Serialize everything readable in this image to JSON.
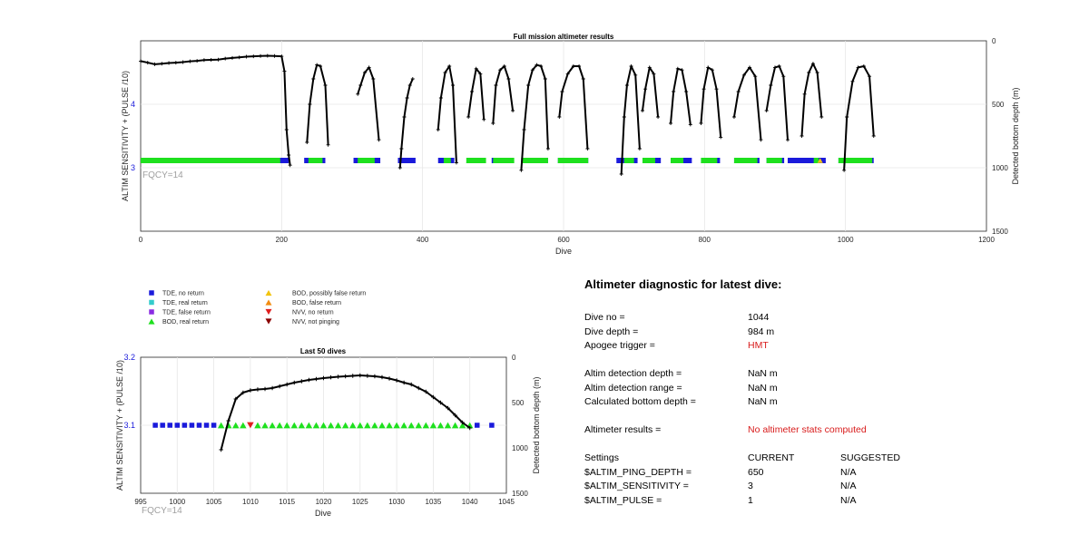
{
  "colors": {
    "tde_no_return": "#1a1adb",
    "tde_real_return": "#33cccc",
    "tde_false_return": "#8a2be2",
    "bod_real_return": "#1ee01e",
    "bod_possibly_false": "#f2c40f",
    "bod_false": "#f28c0f",
    "nvv_no_return": "#e01f1f",
    "nvv_not_pinging": "#8b0000",
    "depth_line": "#000000",
    "warning_text": "#d81b1b"
  },
  "legend": [
    {
      "label": "TDE, no return",
      "marker": "square",
      "color": "#1a1adb"
    },
    {
      "label": "TDE, real return",
      "marker": "square",
      "color": "#33cccc"
    },
    {
      "label": "TDE, false return",
      "marker": "square",
      "color": "#8a2be2"
    },
    {
      "label": "BOD, real return",
      "marker": "triangle-up",
      "color": "#1ee01e"
    },
    {
      "label": "BOD, possibly false return",
      "marker": "triangle-up",
      "color": "#f2c40f"
    },
    {
      "label": "BOD, false return",
      "marker": "triangle-up",
      "color": "#f28c0f"
    },
    {
      "label": "NVV, no return",
      "marker": "triangle-down",
      "color": "#e01f1f"
    },
    {
      "label": "NVV, not pinging",
      "marker": "triangle-down",
      "color": "#8b0000"
    }
  ],
  "diagnostic": {
    "title": "Altimeter diagnostic for latest dive:",
    "dive_no_label": "Dive no =",
    "dive_no": "1044",
    "dive_depth_label": "Dive depth =",
    "dive_depth": "984 m",
    "apogee_label": "Apogee trigger =",
    "apogee": "HMT",
    "detect_depth_label": "Altim detection depth =",
    "detect_depth": "NaN m",
    "detect_range_label": "Altim detection range =",
    "detect_range": "NaN m",
    "calc_depth_label": "Calculated bottom depth =",
    "calc_depth": "NaN m",
    "results_label": "Altimeter results =",
    "results": "No altimeter stats computed",
    "settings_label": "Settings",
    "current_label": "CURRENT",
    "suggested_label": "SUGGESTED",
    "settings": [
      {
        "name": "$ALTIM_PING_DEPTH =",
        "current": "650",
        "suggested": "N/A"
      },
      {
        "name": "$ALTIM_SENSITIVITY =",
        "current": "3",
        "suggested": "N/A"
      },
      {
        "name": "$ALTIM_PULSE =",
        "current": "1",
        "suggested": "N/A"
      }
    ]
  },
  "chart_data": [
    {
      "type": "scatter",
      "title": "Full mission altimeter results",
      "xlabel": "Dive",
      "ylabel": "ALTIM SENSITIVITY + (PULSE /10)",
      "y2label": "Detected bottom depth (m)",
      "annotation": "FQCY=14",
      "xlim": [
        0,
        1200
      ],
      "ylim": [
        2,
        5
      ],
      "y2lim": [
        1500,
        0
      ],
      "y2_reversed": true,
      "xticks": [
        0,
        200,
        400,
        600,
        800,
        1000,
        1200
      ],
      "yticks": [
        3,
        4
      ],
      "y2ticks": [
        0,
        500,
        1000,
        1500
      ],
      "grid": true,
      "tde_no_return_ranges": [
        [
          0,
          210
        ],
        [
          232,
          262
        ],
        [
          302,
          340
        ],
        [
          365,
          390
        ],
        [
          422,
          445
        ],
        [
          470,
          480
        ],
        [
          498,
          528
        ],
        [
          540,
          578
        ],
        [
          592,
          635
        ],
        [
          675,
          705
        ],
        [
          712,
          738
        ],
        [
          752,
          782
        ],
        [
          795,
          822
        ],
        [
          842,
          878
        ],
        [
          888,
          913
        ],
        [
          918,
          972
        ],
        [
          990,
          1040
        ]
      ],
      "bod_real_return_ranges": [
        [
          0,
          198
        ],
        [
          238,
          258
        ],
        [
          308,
          332
        ],
        [
          430,
          440
        ],
        [
          462,
          490
        ],
        [
          500,
          530
        ],
        [
          540,
          578
        ],
        [
          592,
          635
        ],
        [
          686,
          700
        ],
        [
          712,
          730
        ],
        [
          752,
          770
        ],
        [
          795,
          818
        ],
        [
          842,
          875
        ],
        [
          888,
          910
        ],
        [
          955,
          962
        ],
        [
          990,
          1038
        ]
      ],
      "bod_possibly_false_ranges": [
        [
          960,
          968
        ]
      ],
      "depth_segments": [
        {
          "x": [
            0,
            10,
            20,
            30,
            40,
            50,
            60,
            70,
            80,
            90,
            100,
            110,
            120,
            130,
            140,
            150,
            160,
            170,
            180,
            190,
            200,
            204,
            207,
            210,
            212
          ],
          "y": [
            160,
            172,
            185,
            180,
            175,
            172,
            168,
            162,
            158,
            152,
            150,
            148,
            140,
            135,
            130,
            125,
            122,
            120,
            118,
            120,
            122,
            240,
            700,
            900,
            980
          ]
        },
        {
          "x": [
            236,
            240,
            245,
            250,
            255,
            262,
            266
          ],
          "y": [
            800,
            500,
            300,
            190,
            200,
            350,
            820
          ]
        },
        {
          "x": [
            308,
            312,
            318,
            324,
            330,
            338
          ],
          "y": [
            420,
            350,
            250,
            210,
            300,
            780
          ]
        },
        {
          "x": [
            368,
            370,
            374,
            378,
            382,
            386
          ],
          "y": [
            1000,
            850,
            600,
            450,
            350,
            300
          ]
        },
        {
          "x": [
            422,
            426,
            432,
            438,
            443,
            448
          ],
          "y": [
            700,
            450,
            250,
            200,
            350,
            960
          ]
        },
        {
          "x": [
            465,
            470,
            476,
            482,
            487
          ],
          "y": [
            600,
            400,
            220,
            260,
            620
          ]
        },
        {
          "x": [
            500,
            504,
            510,
            516,
            522,
            528
          ],
          "y": [
            650,
            350,
            230,
            200,
            300,
            550
          ]
        },
        {
          "x": [
            540,
            544,
            550,
            556,
            562,
            568,
            574,
            578
          ],
          "y": [
            1020,
            700,
            350,
            230,
            190,
            200,
            300,
            850
          ]
        },
        {
          "x": [
            594,
            598,
            606,
            614,
            622,
            628,
            634
          ],
          "y": [
            600,
            400,
            260,
            200,
            200,
            300,
            850
          ]
        },
        {
          "x": [
            682,
            686,
            690,
            696,
            702,
            708
          ],
          "y": [
            1050,
            600,
            350,
            200,
            270,
            850
          ]
        },
        {
          "x": [
            712,
            716,
            722,
            728,
            734
          ],
          "y": [
            550,
            380,
            210,
            260,
            600
          ]
        },
        {
          "x": [
            752,
            756,
            762,
            768,
            774,
            780
          ],
          "y": [
            650,
            400,
            220,
            230,
            400,
            660
          ]
        },
        {
          "x": [
            795,
            799,
            805,
            811,
            817,
            823
          ],
          "y": [
            650,
            380,
            210,
            230,
            380,
            760
          ]
        },
        {
          "x": [
            842,
            848,
            856,
            864,
            872,
            880
          ],
          "y": [
            600,
            400,
            270,
            210,
            280,
            780
          ]
        },
        {
          "x": [
            888,
            894,
            900,
            906,
            912,
            918
          ],
          "y": [
            550,
            350,
            210,
            200,
            280,
            780
          ]
        },
        {
          "x": [
            938,
            942,
            948,
            954,
            960,
            966
          ],
          "y": [
            750,
            420,
            250,
            180,
            250,
            600
          ]
        },
        {
          "x": [
            998,
            1002,
            1010,
            1018,
            1026,
            1034,
            1040
          ],
          "y": [
            1020,
            600,
            320,
            210,
            200,
            280,
            750
          ]
        }
      ]
    },
    {
      "type": "scatter",
      "title": "Last 50 dives",
      "xlabel": "Dive",
      "ylabel": "ALTIM SENSITIVITY + (PULSE /10)",
      "y2label": "Detected bottom depth (m)",
      "annotation": "FQCY=14",
      "xlim": [
        995,
        1045
      ],
      "ylim": [
        3.0,
        3.2
      ],
      "y2lim": [
        1500,
        0
      ],
      "y2_reversed": true,
      "xticks": [
        995,
        1000,
        1005,
        1010,
        1015,
        1020,
        1025,
        1030,
        1035,
        1040,
        1045
      ],
      "yticks": [
        3.1,
        3.2
      ],
      "y2ticks": [
        0,
        500,
        1000,
        1500
      ],
      "grid": true,
      "tde_no_return_x": [
        997,
        998,
        999,
        1000,
        1001,
        1002,
        1003,
        1004,
        1005,
        1041,
        1043
      ],
      "bod_real_return_x": [
        1006,
        1007,
        1008,
        1009,
        1011,
        1012,
        1013,
        1014,
        1015,
        1016,
        1017,
        1018,
        1019,
        1020,
        1021,
        1022,
        1023,
        1024,
        1025,
        1026,
        1027,
        1028,
        1029,
        1030,
        1031,
        1032,
        1033,
        1034,
        1035,
        1036,
        1037,
        1038,
        1039,
        1040
      ],
      "nvv_no_return_x": [
        1010
      ],
      "marker_y": 3.1,
      "depth_x": [
        1006,
        1007,
        1008,
        1009,
        1010,
        1011,
        1012,
        1013,
        1014,
        1015,
        1016,
        1017,
        1018,
        1019,
        1020,
        1021,
        1022,
        1023,
        1024,
        1025,
        1026,
        1027,
        1028,
        1029,
        1030,
        1031,
        1032,
        1033,
        1034,
        1035,
        1036,
        1037,
        1038,
        1039,
        1040
      ],
      "depth_y": [
        1020,
        700,
        460,
        390,
        365,
        355,
        350,
        340,
        320,
        300,
        280,
        265,
        250,
        240,
        230,
        222,
        215,
        210,
        205,
        200,
        205,
        210,
        220,
        235,
        255,
        280,
        300,
        340,
        380,
        440,
        500,
        560,
        640,
        720,
        780
      ]
    }
  ]
}
